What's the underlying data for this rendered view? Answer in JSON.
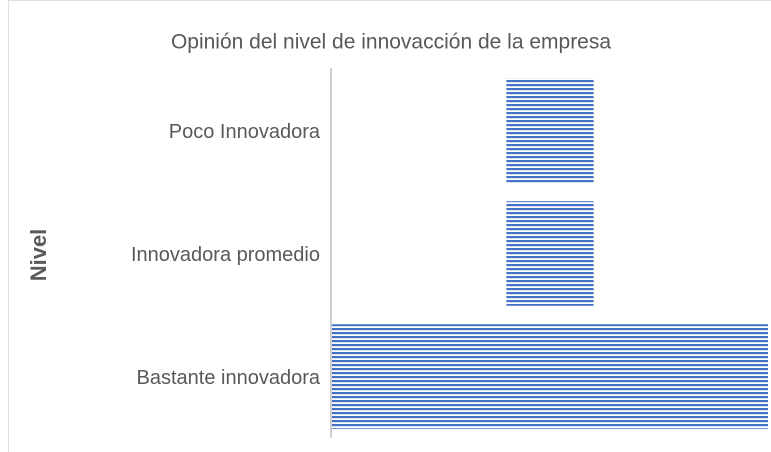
{
  "chart_data": {
    "type": "funnel",
    "title": "Opinión del nivel de innovacción de la empresa",
    "y_label": "Nivel",
    "categories": [
      "Poco Innovadora",
      "Innovadora promedio",
      "Bastante innovadora"
    ],
    "values": [
      1,
      1,
      5
    ],
    "color": "#4472c4"
  }
}
